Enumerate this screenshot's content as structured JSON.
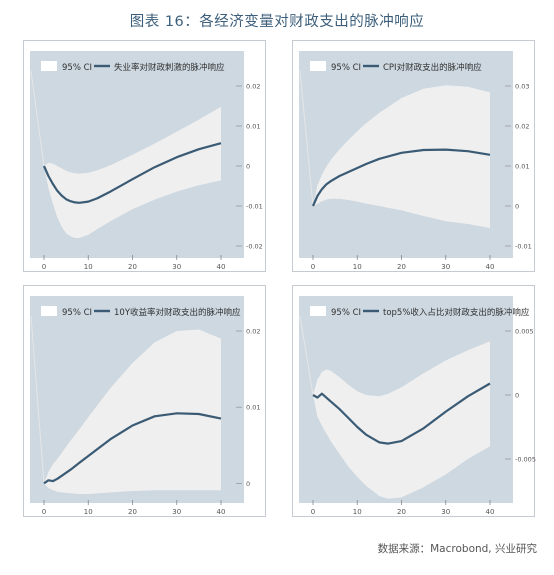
{
  "title": "图表 16：各经济变量对财政支出的脉冲响应",
  "source": "数据来源：Macrobond, 兴业研究",
  "colors": {
    "plot_bg": "#cdd8e1",
    "band": "#efefef",
    "line": "#3b5b75",
    "title": "#3d5f7b",
    "tick": "#555555"
  },
  "chart_data": [
    {
      "type": "line",
      "legend": [
        "95% CI",
        "失业率对财政刺激的脉冲响应"
      ],
      "xlim": [
        0,
        40
      ],
      "x_ticks": [
        "0",
        "10",
        "20",
        "30",
        "40"
      ],
      "ylim": [
        -0.02,
        0.02
      ],
      "y_ticks": [
        "-0.02",
        "-0.01",
        "0",
        "0.01",
        "0.02"
      ],
      "x": [
        0,
        1,
        2,
        3,
        4,
        5,
        6,
        7,
        8,
        10,
        12,
        15,
        20,
        25,
        30,
        35,
        40
      ],
      "series": [
        {
          "name": "失业率对财政刺激的脉冲响应",
          "values": [
            0.0,
            -0.0025,
            -0.0045,
            -0.0062,
            -0.0074,
            -0.0083,
            -0.0088,
            -0.0091,
            -0.0092,
            -0.0089,
            -0.0081,
            -0.0064,
            -0.0033,
            -0.0003,
            0.0022,
            0.0042,
            0.0057
          ]
        }
      ],
      "band_upper": [
        0.0,
        0.0008,
        0.0006,
        0.0,
        -0.0006,
        -0.0012,
        -0.0016,
        -0.0018,
        -0.0019,
        -0.0017,
        -0.0011,
        0.0002,
        0.0028,
        0.0056,
        0.0086,
        0.0116,
        0.0148
      ],
      "band_lower": [
        0.0,
        -0.0055,
        -0.0095,
        -0.0128,
        -0.0152,
        -0.0168,
        -0.0176,
        -0.018,
        -0.018,
        -0.0172,
        -0.0158,
        -0.0138,
        -0.0108,
        -0.0084,
        -0.0064,
        -0.0048,
        -0.0036
      ]
    },
    {
      "type": "line",
      "legend": [
        "95% CI",
        "CPI对财政支出的脉冲响应"
      ],
      "xlim": [
        0,
        40
      ],
      "x_ticks": [
        "0",
        "10",
        "20",
        "30",
        "40"
      ],
      "ylim": [
        -0.01,
        0.03
      ],
      "y_ticks": [
        "-0.01",
        "0",
        "0.01",
        "0.02",
        "0.03"
      ],
      "x": [
        0,
        1,
        2,
        3,
        4,
        6,
        8,
        10,
        12,
        15,
        20,
        25,
        30,
        35,
        40
      ],
      "series": [
        {
          "name": "CPI对财政支出的脉冲响应",
          "values": [
            0.0,
            0.0025,
            0.0042,
            0.0054,
            0.0062,
            0.0075,
            0.0085,
            0.0095,
            0.0105,
            0.0118,
            0.0133,
            0.014,
            0.0141,
            0.0137,
            0.0128
          ]
        }
      ],
      "band_upper": [
        0.0,
        0.0052,
        0.0078,
        0.0098,
        0.0115,
        0.0142,
        0.0165,
        0.0187,
        0.0207,
        0.0233,
        0.027,
        0.0293,
        0.0302,
        0.0298,
        0.0284
      ],
      "band_lower": [
        0.0,
        0.0005,
        0.0012,
        0.0016,
        0.0018,
        0.0018,
        0.0015,
        0.0011,
        0.0006,
        0.0,
        -0.0011,
        -0.0025,
        -0.0038,
        -0.0045,
        -0.0055
      ]
    },
    {
      "type": "line",
      "legend": [
        "95% CI",
        "10Y收益率对财政支出的脉冲响应"
      ],
      "xlim": [
        0,
        40
      ],
      "x_ticks": [
        "0",
        "10",
        "20",
        "30",
        "40"
      ],
      "ylim": [
        -0.001,
        0.02
      ],
      "y_ticks": [
        "0",
        "0.01",
        "0.02"
      ],
      "x": [
        0,
        1,
        2,
        3,
        4,
        6,
        8,
        10,
        15,
        20,
        25,
        30,
        35,
        40
      ],
      "series": [
        {
          "name": "10Y收益率对财政支出的脉冲响应",
          "values": [
            0.0,
            0.0004,
            0.0003,
            0.0006,
            0.001,
            0.0018,
            0.0027,
            0.0036,
            0.0058,
            0.0076,
            0.0088,
            0.0092,
            0.0091,
            0.0085
          ]
        }
      ],
      "band_upper": [
        0.0,
        0.0015,
        0.0025,
        0.0032,
        0.004,
        0.0056,
        0.0071,
        0.0087,
        0.0125,
        0.0158,
        0.0185,
        0.02,
        0.0202,
        0.019
      ],
      "band_lower": [
        0.0,
        -0.0006,
        -0.0009,
        -0.0011,
        -0.0012,
        -0.0013,
        -0.0014,
        -0.0014,
        -0.0012,
        -0.001,
        -0.0009,
        -0.0009,
        -0.0009,
        -0.0009
      ]
    },
    {
      "type": "line",
      "legend": [
        "95% CI",
        "top5%收入占比对财政支出的脉冲响应"
      ],
      "xlim": [
        0,
        40
      ],
      "x_ticks": [
        "0",
        "10",
        "20",
        "30",
        "40"
      ],
      "ylim": [
        -0.0075,
        0.005
      ],
      "y_ticks": [
        "-0.005",
        "0",
        "0.005"
      ],
      "x": [
        0,
        1,
        2,
        3,
        4,
        6,
        8,
        10,
        12,
        15,
        17,
        20,
        25,
        30,
        35,
        40
      ],
      "series": [
        {
          "name": "top5%收入占比对财政支出的脉冲响应",
          "values": [
            0.0,
            -0.0002,
            0.0001,
            -0.0002,
            -0.0005,
            -0.0011,
            -0.0018,
            -0.0025,
            -0.0031,
            -0.0037,
            -0.0038,
            -0.0036,
            -0.0026,
            -0.0013,
            -0.0001,
            0.0009
          ]
        }
      ],
      "band_upper": [
        0.0,
        0.0012,
        0.0018,
        0.002,
        0.0019,
        0.0014,
        0.0008,
        0.0003,
        0.0,
        -0.0001,
        0.0001,
        0.0006,
        0.0017,
        0.0027,
        0.0035,
        0.0042
      ],
      "band_lower": [
        0.0,
        -0.0017,
        -0.0024,
        -0.003,
        -0.0036,
        -0.0046,
        -0.0056,
        -0.0064,
        -0.0071,
        -0.0079,
        -0.0081,
        -0.008,
        -0.0072,
        -0.0062,
        -0.005,
        -0.004
      ]
    }
  ]
}
